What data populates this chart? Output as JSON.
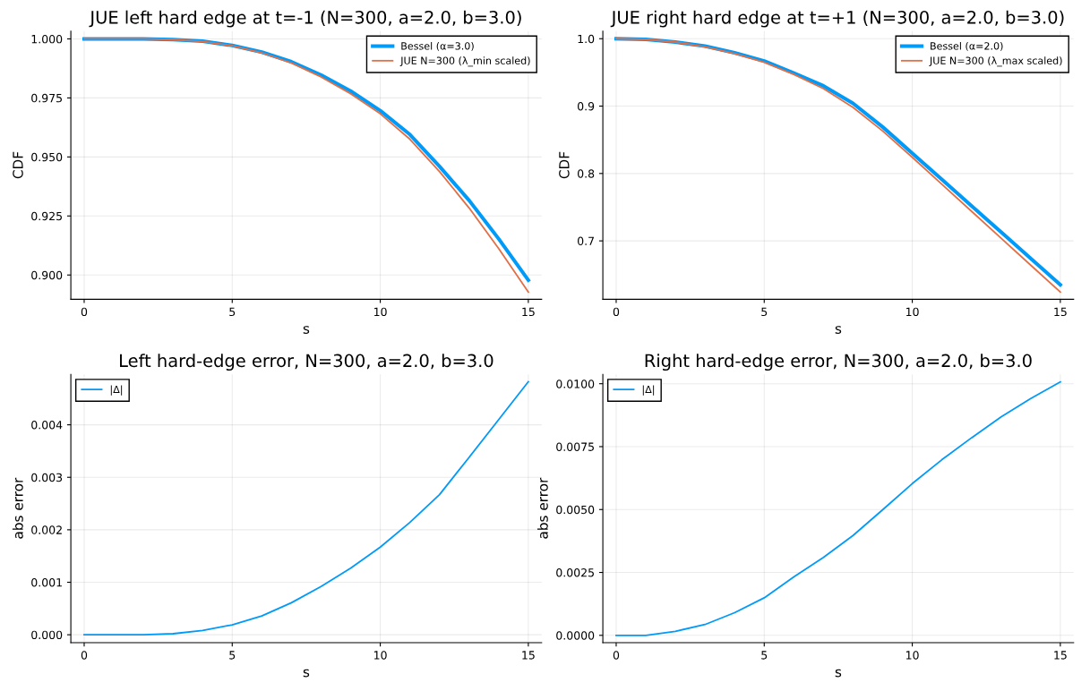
{
  "chart_data": [
    {
      "type": "line",
      "title": "JUE left hard edge at t=-1 (N=300, a=2.0, b=3.0)",
      "xlabel": "s",
      "ylabel": "CDF",
      "x": [
        0,
        1,
        2,
        3,
        4,
        5,
        6,
        7,
        8,
        9,
        10,
        11,
        12,
        13,
        14,
        15
      ],
      "series": [
        {
          "name": "Bessel (α=3.0)",
          "color": "#009af9",
          "values": [
            1.0,
            1.0,
            1.0,
            0.9997,
            0.999,
            0.9972,
            0.9944,
            0.9903,
            0.9847,
            0.9779,
            0.9696,
            0.9595,
            0.946,
            0.9316,
            0.9153,
            0.8978
          ]
        },
        {
          "name": "JUE N=300 (λ_min scaled)",
          "color": "#e26f46",
          "values": [
            1.0,
            1.0,
            1.0,
            0.9997,
            0.9989,
            0.9971,
            0.9941,
            0.9898,
            0.9839,
            0.9768,
            0.9683,
            0.9575,
            0.9438,
            0.9284,
            0.9112,
            0.8928
          ]
        }
      ],
      "xlim": [
        -0.45,
        15.45
      ],
      "xticks": [
        0,
        5,
        10,
        15
      ],
      "ylim": [
        0.8897,
        1.0033
      ],
      "yticks": [
        {
          "value": 0.9,
          "label": "0.900"
        },
        {
          "value": 0.925,
          "label": "0.925"
        },
        {
          "value": 0.95,
          "label": "0.950"
        },
        {
          "value": 0.975,
          "label": "0.975"
        },
        {
          "value": 1.0,
          "label": "1.000"
        }
      ],
      "grid": true,
      "legend": "top right"
    },
    {
      "type": "line",
      "title": "JUE right hard edge at t=+1 (N=300, a=2.0, b=3.0)",
      "xlabel": "s",
      "ylabel": "CDF",
      "x": [
        0,
        1,
        2,
        3,
        4,
        5,
        6,
        7,
        8,
        9,
        10,
        11,
        12,
        13,
        14,
        15
      ],
      "series": [
        {
          "name": "Bessel (α=2.0)",
          "color": "#009af9",
          "values": [
            1.0,
            0.999,
            0.995,
            0.989,
            0.979,
            0.967,
            0.949,
            0.93,
            0.904,
            0.869,
            0.83,
            0.791,
            0.752,
            0.713,
            0.674,
            0.635
          ]
        },
        {
          "name": "JUE N=300 (λ_max scaled)",
          "color": "#e26f46",
          "values": [
            1.0,
            0.999,
            0.995,
            0.988,
            0.978,
            0.965,
            0.947,
            0.926,
            0.898,
            0.863,
            0.824,
            0.784,
            0.744,
            0.704,
            0.664,
            0.6241
          ]
        }
      ],
      "xlim": [
        -0.45,
        15.45
      ],
      "xticks": [
        0,
        5,
        10,
        15
      ],
      "ylim": [
        0.6133,
        1.0113
      ],
      "yticks": [
        0.7,
        0.8,
        0.9,
        {
          "value": 1.0,
          "label": "1.0"
        }
      ],
      "grid": true,
      "legend": "top right"
    },
    {
      "type": "line",
      "title": "Left hard-edge error, N=300, a=2.0, b=3.0",
      "xlabel": "s",
      "ylabel": "abs error",
      "x": [
        0,
        1,
        2,
        3,
        4,
        5,
        6,
        7,
        8,
        9,
        10,
        11,
        12,
        13,
        14,
        15
      ],
      "series": [
        {
          "name": "|Δ|",
          "color": "#009af9",
          "values": [
            0.0,
            0.0,
            0.0,
            2e-05,
            8e-05,
            0.00019,
            0.00036,
            0.00061,
            0.00092,
            0.00127,
            0.00167,
            0.00214,
            0.00267,
            0.00338,
            0.0041,
            0.00482
          ]
        }
      ],
      "xlim": [
        -0.45,
        15.45
      ],
      "xticks": [
        0,
        5,
        10,
        15
      ],
      "ylim": [
        -0.00015,
        0.00496
      ],
      "yticks": [
        {
          "value": 0.0,
          "label": "0.000"
        },
        {
          "value": 0.001,
          "label": "0.001"
        },
        {
          "value": 0.002,
          "label": "0.002"
        },
        {
          "value": 0.003,
          "label": "0.003"
        },
        {
          "value": 0.004,
          "label": "0.004"
        }
      ],
      "grid": true,
      "legend": "top left"
    },
    {
      "type": "line",
      "title": "Right hard-edge error, N=300, a=2.0, b=3.0",
      "xlabel": "s",
      "ylabel": "abs error",
      "x": [
        0,
        1,
        2,
        3,
        4,
        5,
        6,
        7,
        8,
        9,
        10,
        11,
        12,
        13,
        14,
        15
      ],
      "series": [
        {
          "name": "|Δ|",
          "color": "#009af9",
          "values": [
            0.0,
            0.0,
            0.00016,
            0.00043,
            0.0009,
            0.00149,
            0.00232,
            0.0031,
            0.00397,
            0.00499,
            0.00603,
            0.00698,
            0.00785,
            0.00868,
            0.00941,
            0.01007
          ]
        }
      ],
      "xlim": [
        -0.45,
        15.45
      ],
      "xticks": [
        0,
        5,
        10,
        15
      ],
      "ylim": [
        -0.00029,
        0.01037
      ],
      "yticks": [
        {
          "value": 0.0,
          "label": "0.0000"
        },
        {
          "value": 0.0025,
          "label": "0.0025"
        },
        {
          "value": 0.005,
          "label": "0.0050"
        },
        {
          "value": 0.0075,
          "label": "0.0075"
        },
        {
          "value": 0.01,
          "label": "0.0100"
        }
      ],
      "grid": true,
      "legend": "top left"
    }
  ]
}
